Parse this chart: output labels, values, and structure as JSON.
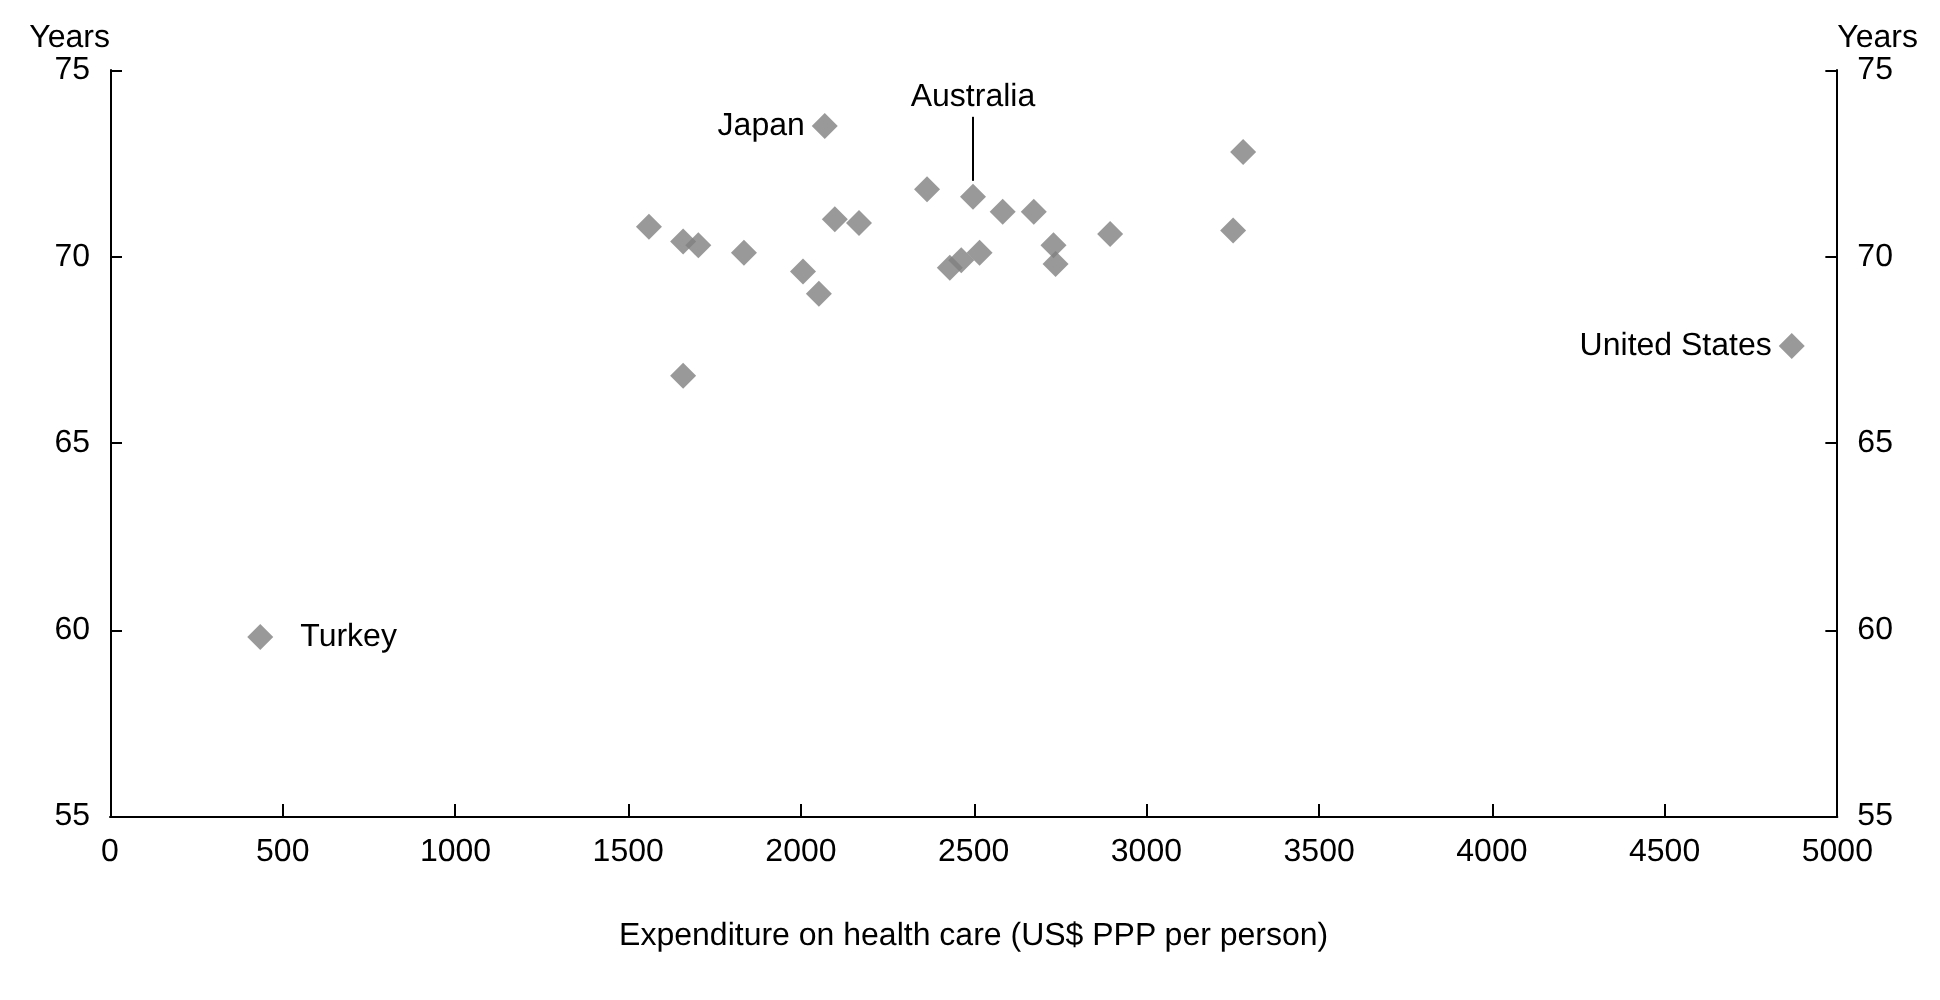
{
  "chart_data": {
    "type": "scatter",
    "xlabel": "Expenditure on health care (US$ PPP per person)",
    "ylabel": "Years",
    "y2label": "Years",
    "x": [
      435,
      4868,
      2069,
      2498,
      1560,
      1659,
      1703,
      1835,
      2006,
      2052,
      1659,
      2098,
      2168,
      2365,
      2584,
      2674,
      2431,
      2464,
      2517,
      2731,
      2737,
      2895,
      3251,
      3280
    ],
    "values": [
      59.8,
      67.6,
      73.5,
      71.6,
      70.8,
      70.4,
      70.3,
      70.1,
      69.6,
      69.0,
      66.8,
      71.0,
      70.9,
      71.8,
      71.2,
      71.2,
      69.7,
      69.9,
      70.1,
      70.3,
      69.8,
      70.6,
      70.7,
      72.8
    ],
    "color": "#808080",
    "marker": "diamond",
    "xlim": [
      0,
      5000
    ],
    "xticks": [
      0,
      500,
      1000,
      1500,
      2000,
      2500,
      3000,
      3500,
      4000,
      4500,
      5000
    ],
    "ylim": [
      55,
      75
    ],
    "yticks": [
      55,
      60,
      65,
      70,
      75
    ],
    "y2lim": [
      55,
      75
    ],
    "y2ticks": [
      55,
      60,
      65,
      70,
      75
    ],
    "annotations": [
      {
        "text": "Turkey",
        "x": 435,
        "y": 59.8
      },
      {
        "text": "United States",
        "x": 4868,
        "y": 67.6
      },
      {
        "text": "Japan",
        "x": 2069,
        "y": 73.5
      },
      {
        "text": "Australia",
        "x": 2498,
        "y": 71.6
      }
    ]
  }
}
